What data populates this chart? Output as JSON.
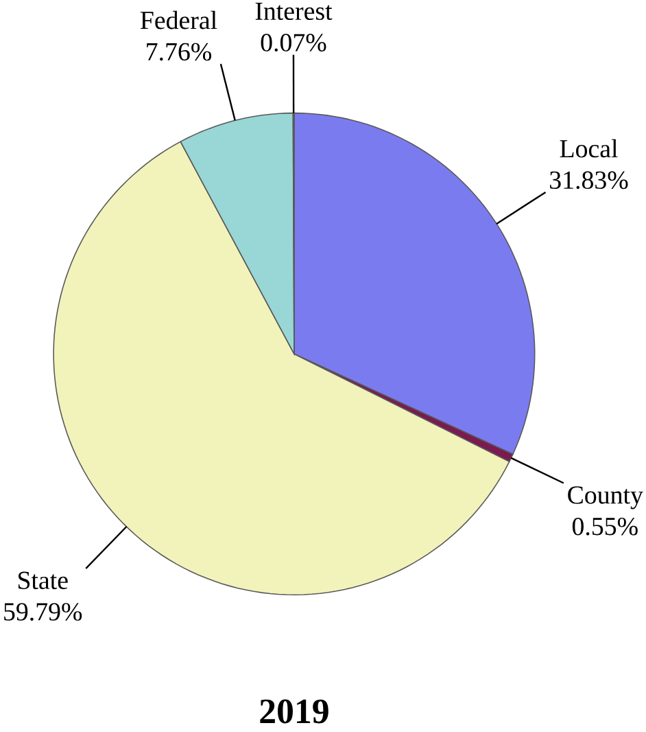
{
  "chart_data": {
    "type": "pie",
    "title": "2019",
    "categories": [
      "Local",
      "County",
      "State",
      "Federal",
      "Interest"
    ],
    "values": [
      31.83,
      0.55,
      59.79,
      7.76,
      0.07
    ],
    "value_labels": [
      "31.83%",
      "0.55%",
      "59.79%",
      "7.76%",
      "0.07%"
    ],
    "colors": [
      "#7b7bf0",
      "#7a1a50",
      "#f2f2bb",
      "#99d6d6",
      "#333333"
    ]
  }
}
